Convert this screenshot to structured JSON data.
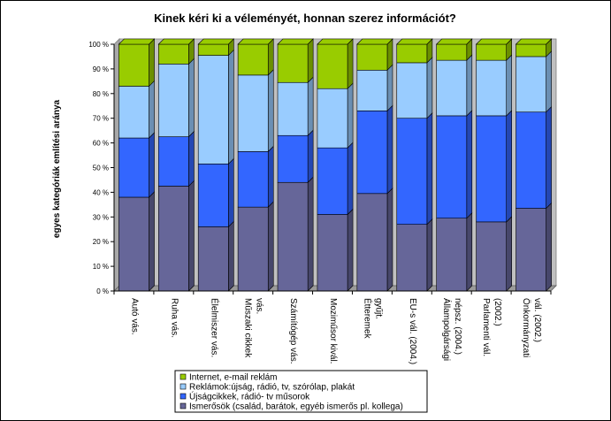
{
  "chart_data": {
    "type": "bar",
    "stacked": true,
    "percent": true,
    "title": "Kinek kéri ki a véleményét, honnan szerez információt?",
    "ylabel": "egyes kategóriák említési aránya",
    "xlabel": "",
    "ylim": [
      0,
      100
    ],
    "yticks": [
      "0 %",
      "10 %",
      "20 %",
      "30 %",
      "40 %",
      "50 %",
      "60 %",
      "70 %",
      "80 %",
      "90 %",
      "100 %"
    ],
    "grid": false,
    "legend_position": "bottom",
    "categories": [
      [
        "Autó vás."
      ],
      [
        "Ruha vás."
      ],
      [
        "Élelmiszer vás."
      ],
      [
        "Műszaki cikkek",
        "vás."
      ],
      [
        "Számítógép vás."
      ],
      [
        "Moziműsor kivál."
      ],
      [
        "Étteremek",
        "gyűjt."
      ],
      [
        "EU-s vál. (2004.)"
      ],
      [
        "Állampolgársági",
        "népsz. (2004.)"
      ],
      [
        "Parlamenti vál.",
        "(2002.)"
      ],
      [
        "Önkormányzati",
        "vál. (2002.)"
      ]
    ],
    "series": [
      {
        "name": "Ismerősök (család, barátok, egyéb ismerős pl. kollega)",
        "color": "#666699",
        "values": [
          38,
          42.5,
          26,
          34,
          44,
          31,
          39.5,
          27,
          29.5,
          28,
          33.5
        ]
      },
      {
        "name": "Újságcikkek, rádió- tv műsorok",
        "color": "#3366ff",
        "values": [
          24,
          20,
          25.5,
          22.5,
          19,
          27,
          33.5,
          43,
          41.5,
          43,
          39
        ]
      },
      {
        "name": "Reklámok:újság, rádió, tv, szórólap, plakát",
        "color": "#99ccff",
        "values": [
          21,
          29.5,
          44,
          31,
          21.5,
          24,
          16.5,
          22.5,
          22.5,
          22.5,
          22.5
        ]
      },
      {
        "name": "Internet, e-mail reklám",
        "color": "#99cc00",
        "values": [
          17,
          8,
          4.5,
          12.5,
          15.5,
          18,
          10.5,
          7.5,
          6.5,
          6.5,
          5
        ]
      }
    ]
  }
}
